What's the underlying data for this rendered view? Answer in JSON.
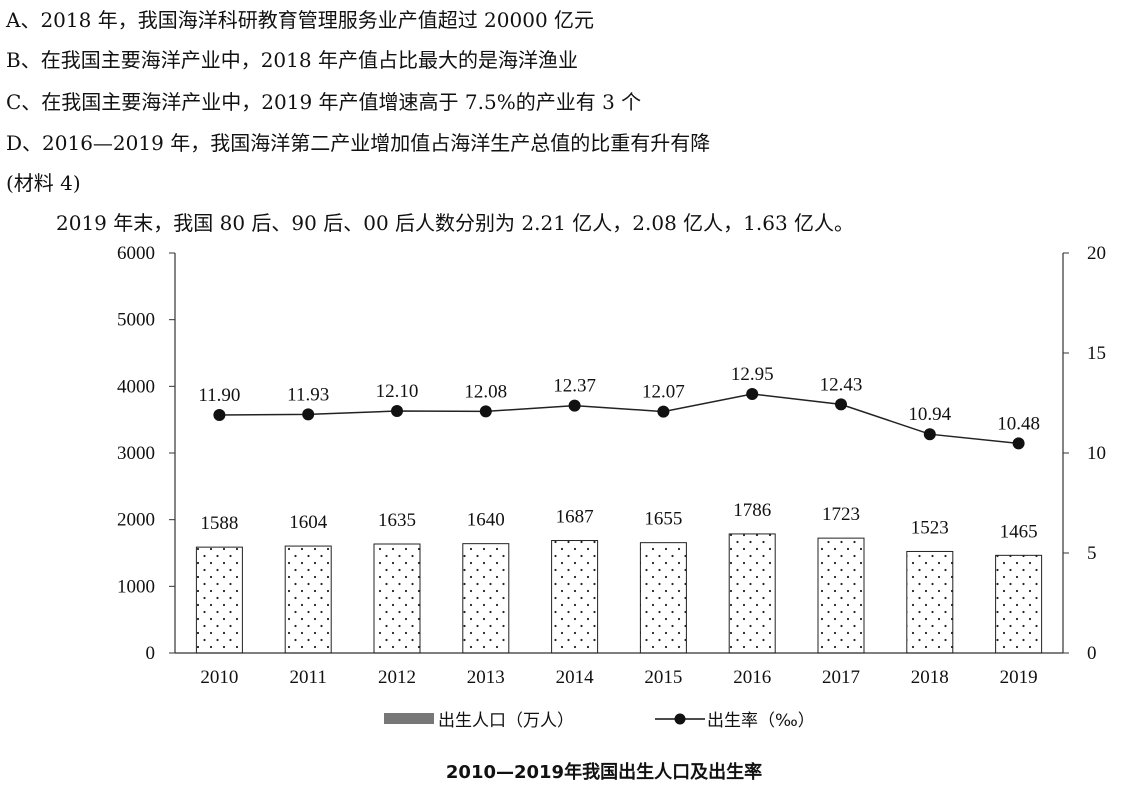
{
  "text_lines": [
    "A、2018 年，我国海洋科研教育管理服务业产值超过 20000 亿元",
    "B、在我国主要海洋产业中，2018 年产值占比最大的是海洋渔业",
    "C、在我国主要海洋产业中，2019 年产值增速高于 7.5%的产业有 3 个",
    "D、2016—2019 年，我国海洋第二产业增加值占海洋生产总值的比重有升有降",
    "(材料 4)",
    "2019 年末，我国 80 后、90 后、00 后人数分别为 2.21 亿人，2.08 亿人，1.63 亿人。"
  ],
  "chart_data": {
    "type": "bar",
    "title": "2010—2019年我国出生人口及出生率",
    "categories": [
      "2010",
      "2011",
      "2012",
      "2013",
      "2014",
      "2015",
      "2016",
      "2017",
      "2018",
      "2019"
    ],
    "series": [
      {
        "name": "出生人口（万人）",
        "type": "bar",
        "axis": "left",
        "values": [
          1588,
          1604,
          1635,
          1640,
          1687,
          1655,
          1786,
          1723,
          1523,
          1465
        ],
        "labels": [
          "1588",
          "1604",
          "1635",
          "1640",
          "1687",
          "1655",
          "1786",
          "1723",
          "1523",
          "1465"
        ]
      },
      {
        "name": "出生率（‰）",
        "type": "line",
        "axis": "right",
        "values": [
          11.9,
          11.93,
          12.1,
          12.08,
          12.37,
          12.07,
          12.95,
          12.43,
          10.94,
          10.48
        ],
        "labels": [
          "11.90",
          "11.93",
          "12.10",
          "12.08",
          "12.37",
          "12.07",
          "12.95",
          "12.43",
          "10.94",
          "10.48"
        ]
      }
    ],
    "y_left": {
      "range": [
        0,
        6000
      ],
      "ticks": [
        "0",
        "1000",
        "2000",
        "3000",
        "4000",
        "5000",
        "6000"
      ]
    },
    "y_right": {
      "range": [
        0,
        20
      ],
      "ticks": [
        "0",
        "5",
        "10",
        "15",
        "20"
      ]
    },
    "grid": false,
    "legend_position": "bottom"
  }
}
